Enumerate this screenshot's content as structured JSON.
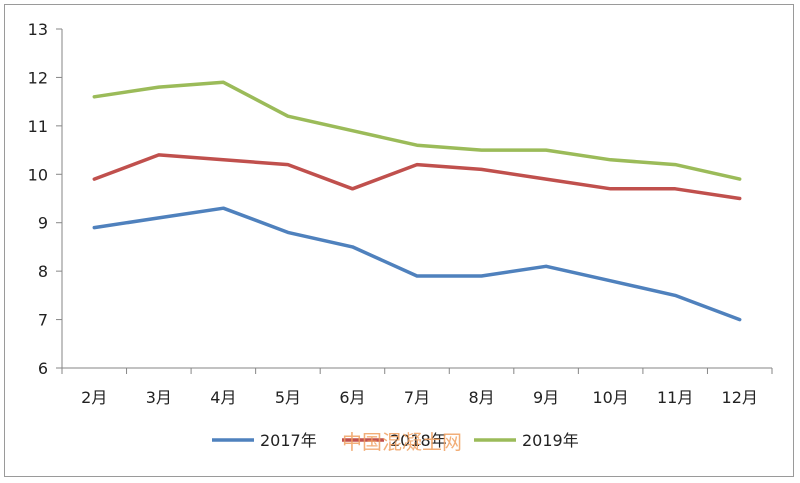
{
  "chart_data": {
    "type": "line",
    "title": "",
    "xlabel": "",
    "ylabel": "",
    "categories": [
      "2月",
      "3月",
      "4月",
      "5月",
      "6月",
      "7月",
      "8月",
      "9月",
      "10月",
      "11月",
      "12月"
    ],
    "ylim": [
      6,
      13
    ],
    "yticks": [
      "6",
      "7",
      "8",
      "9",
      "10",
      "11",
      "12",
      "13"
    ],
    "grid": false,
    "legend_position": "bottom",
    "series": [
      {
        "name": "2017年",
        "color": "#4f81bd",
        "values": [
          8.9,
          9.1,
          9.3,
          8.8,
          8.5,
          7.9,
          7.9,
          8.1,
          7.8,
          7.5,
          7.0
        ]
      },
      {
        "name": "2018年",
        "color": "#c0504d",
        "values": [
          9.9,
          10.4,
          10.3,
          10.2,
          9.7,
          10.2,
          10.1,
          9.9,
          9.7,
          9.7,
          9.5
        ]
      },
      {
        "name": "2019年",
        "color": "#9bbb59",
        "values": [
          11.6,
          11.8,
          11.9,
          11.2,
          10.9,
          10.6,
          10.5,
          10.5,
          10.3,
          10.2,
          9.9
        ]
      }
    ]
  },
  "watermark": "中国混凝土网"
}
